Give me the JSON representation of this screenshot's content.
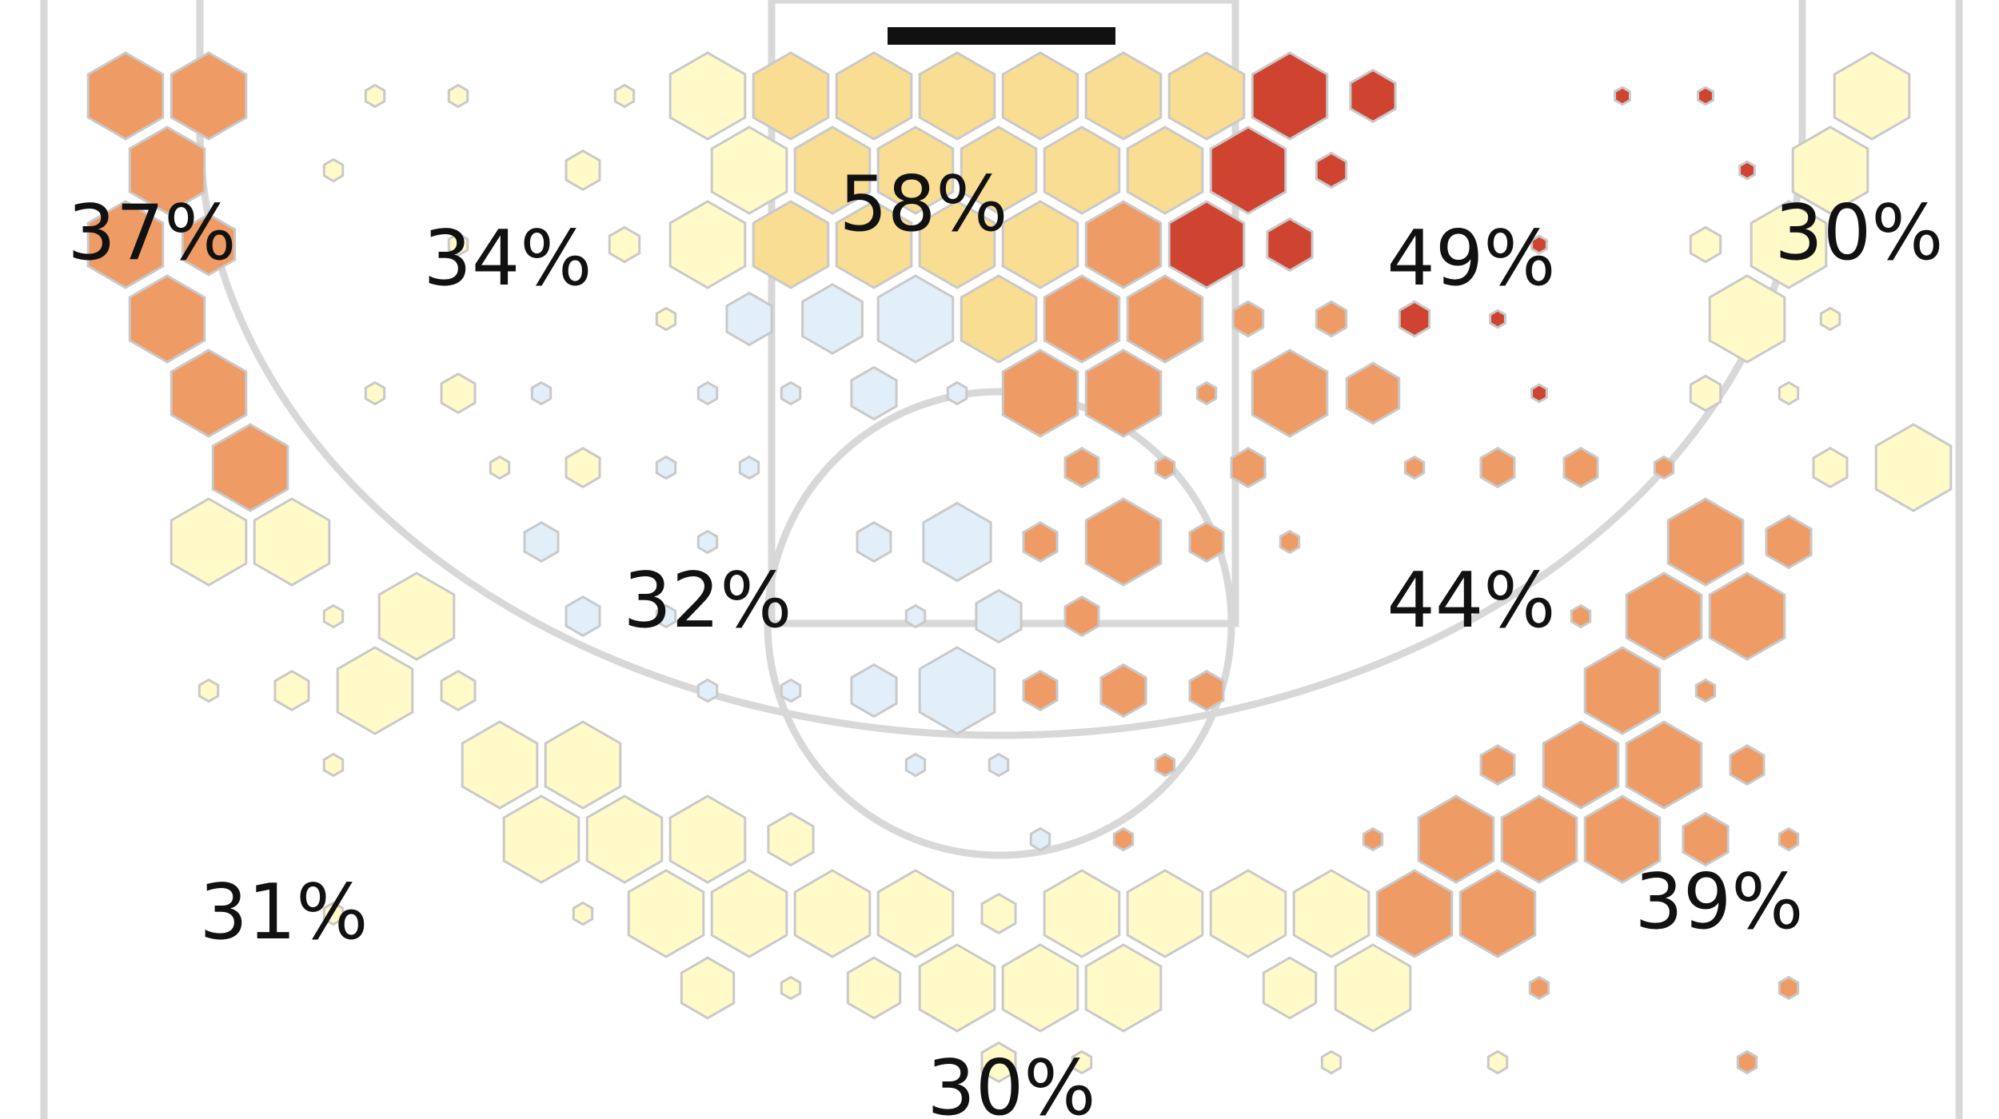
{
  "chart_data": {
    "type": "hexbin-shot-chart",
    "title": "",
    "zones": [
      {
        "id": "left-corner",
        "label": "37%",
        "value": 37
      },
      {
        "id": "left-wing-mid",
        "label": "34%",
        "value": 34
      },
      {
        "id": "paint",
        "label": "58%",
        "value": 58
      },
      {
        "id": "right-baseline-mid",
        "label": "49%",
        "value": 49
      },
      {
        "id": "right-corner",
        "label": "30%",
        "value": 30
      },
      {
        "id": "left-elbow",
        "label": "32%",
        "value": 32
      },
      {
        "id": "right-elbow",
        "label": "44%",
        "value": 44
      },
      {
        "id": "left-wing-three",
        "label": "31%",
        "value": 31
      },
      {
        "id": "top-of-key-three",
        "label": "30%",
        "value": 30
      },
      {
        "id": "right-wing-three",
        "label": "39%",
        "value": 39
      }
    ],
    "color_scale": {
      "levels": [
        "cold",
        "below-average",
        "average",
        "above-average",
        "hot"
      ],
      "colors": [
        "#e2eff8",
        "#fffac8",
        "#f9dd92",
        "#ee9b65",
        "#cf4431"
      ]
    },
    "hexes": [
      {
        "c": 0,
        "r": 0,
        "lvl": 3,
        "s": 1.0
      },
      {
        "c": 1,
        "r": 0,
        "lvl": 3,
        "s": 1.0
      },
      {
        "c": 3,
        "r": 0,
        "lvl": 1,
        "s": 0.25
      },
      {
        "c": 4,
        "r": 0,
        "lvl": 1,
        "s": 0.25
      },
      {
        "c": 6,
        "r": 0,
        "lvl": 1,
        "s": 0.25
      },
      {
        "c": 7,
        "r": 0,
        "lvl": 1,
        "s": 1.0
      },
      {
        "c": 8,
        "r": 0,
        "lvl": 2,
        "s": 1.0
      },
      {
        "c": 9,
        "r": 0,
        "lvl": 2,
        "s": 1.0
      },
      {
        "c": 10,
        "r": 0,
        "lvl": 2,
        "s": 1.0
      },
      {
        "c": 11,
        "r": 0,
        "lvl": 2,
        "s": 1.0
      },
      {
        "c": 12,
        "r": 0,
        "lvl": 2,
        "s": 1.0
      },
      {
        "c": 13,
        "r": 0,
        "lvl": 2,
        "s": 1.0
      },
      {
        "c": 14,
        "r": 0,
        "lvl": 4,
        "s": 1.0
      },
      {
        "c": 15,
        "r": 0,
        "lvl": 4,
        "s": 0.6
      },
      {
        "c": 18,
        "r": 0,
        "lvl": 4,
        "s": 0.2
      },
      {
        "c": 19,
        "r": 0,
        "lvl": 4,
        "s": 0.2
      },
      {
        "c": 21,
        "r": 0,
        "lvl": 1,
        "s": 1.0
      },
      {
        "c": 0,
        "r": 1,
        "lvl": 3,
        "s": 1.0
      },
      {
        "c": 2,
        "r": 1,
        "lvl": 1,
        "s": 0.25
      },
      {
        "c": 5,
        "r": 1,
        "lvl": 1,
        "s": 0.45
      },
      {
        "c": 7,
        "r": 1,
        "lvl": 1,
        "s": 1.0
      },
      {
        "c": 8,
        "r": 1,
        "lvl": 2,
        "s": 1.0
      },
      {
        "c": 9,
        "r": 1,
        "lvl": 2,
        "s": 1.0
      },
      {
        "c": 10,
        "r": 1,
        "lvl": 2,
        "s": 1.0
      },
      {
        "c": 11,
        "r": 1,
        "lvl": 2,
        "s": 1.0
      },
      {
        "c": 12,
        "r": 1,
        "lvl": 2,
        "s": 1.0
      },
      {
        "c": 13,
        "r": 1,
        "lvl": 4,
        "s": 1.0
      },
      {
        "c": 14,
        "r": 1,
        "lvl": 4,
        "s": 0.4
      },
      {
        "c": 19,
        "r": 1,
        "lvl": 4,
        "s": 0.2
      },
      {
        "c": 20,
        "r": 1,
        "lvl": 1,
        "s": 1.0
      },
      {
        "c": 0,
        "r": 2,
        "lvl": 3,
        "s": 1.0
      },
      {
        "c": 1,
        "r": 2,
        "lvl": 3,
        "s": 0.7
      },
      {
        "c": 4,
        "r": 2,
        "lvl": 1,
        "s": 0.25
      },
      {
        "c": 6,
        "r": 2,
        "lvl": 1,
        "s": 0.4
      },
      {
        "c": 7,
        "r": 2,
        "lvl": 1,
        "s": 1.0
      },
      {
        "c": 8,
        "r": 2,
        "lvl": 2,
        "s": 1.0
      },
      {
        "c": 9,
        "r": 2,
        "lvl": 2,
        "s": 1.0
      },
      {
        "c": 10,
        "r": 2,
        "lvl": 2,
        "s": 1.0
      },
      {
        "c": 11,
        "r": 2,
        "lvl": 2,
        "s": 1.0
      },
      {
        "c": 12,
        "r": 2,
        "lvl": 3,
        "s": 1.0
      },
      {
        "c": 13,
        "r": 2,
        "lvl": 4,
        "s": 1.0
      },
      {
        "c": 14,
        "r": 2,
        "lvl": 4,
        "s": 0.6
      },
      {
        "c": 17,
        "r": 2,
        "lvl": 4,
        "s": 0.2
      },
      {
        "c": 19,
        "r": 2,
        "lvl": 1,
        "s": 0.4
      },
      {
        "c": 20,
        "r": 2,
        "lvl": 1,
        "s": 1.0
      },
      {
        "c": 0,
        "r": 3,
        "lvl": 3,
        "s": 1.0
      },
      {
        "c": 6,
        "r": 3,
        "lvl": 1,
        "s": 0.25
      },
      {
        "c": 7,
        "r": 3,
        "lvl": 0,
        "s": 0.6
      },
      {
        "c": 8,
        "r": 3,
        "lvl": 0,
        "s": 0.8
      },
      {
        "c": 9,
        "r": 3,
        "lvl": 0,
        "s": 1.0
      },
      {
        "c": 10,
        "r": 3,
        "lvl": 2,
        "s": 1.0
      },
      {
        "c": 11,
        "r": 3,
        "lvl": 3,
        "s": 1.0
      },
      {
        "c": 12,
        "r": 3,
        "lvl": 3,
        "s": 1.0
      },
      {
        "c": 13,
        "r": 3,
        "lvl": 3,
        "s": 0.4
      },
      {
        "c": 14,
        "r": 3,
        "lvl": 3,
        "s": 0.4
      },
      {
        "c": 15,
        "r": 3,
        "lvl": 4,
        "s": 0.4
      },
      {
        "c": 16,
        "r": 3,
        "lvl": 4,
        "s": 0.2
      },
      {
        "c": 19,
        "r": 3,
        "lvl": 1,
        "s": 1.0
      },
      {
        "c": 20,
        "r": 3,
        "lvl": 1,
        "s": 0.25
      },
      {
        "c": 1,
        "r": 4,
        "lvl": 3,
        "s": 1.0
      },
      {
        "c": 3,
        "r": 4,
        "lvl": 1,
        "s": 0.25
      },
      {
        "c": 4,
        "r": 4,
        "lvl": 1,
        "s": 0.45
      },
      {
        "c": 5,
        "r": 4,
        "lvl": 0,
        "s": 0.25
      },
      {
        "c": 7,
        "r": 4,
        "lvl": 0,
        "s": 0.25
      },
      {
        "c": 8,
        "r": 4,
        "lvl": 0,
        "s": 0.25
      },
      {
        "c": 9,
        "r": 4,
        "lvl": 0,
        "s": 0.6
      },
      {
        "c": 10,
        "r": 4,
        "lvl": 0,
        "s": 0.25
      },
      {
        "c": 11,
        "r": 4,
        "lvl": 3,
        "s": 1.0
      },
      {
        "c": 12,
        "r": 4,
        "lvl": 3,
        "s": 1.0
      },
      {
        "c": 13,
        "r": 4,
        "lvl": 3,
        "s": 0.25
      },
      {
        "c": 14,
        "r": 4,
        "lvl": 3,
        "s": 1.0
      },
      {
        "c": 15,
        "r": 4,
        "lvl": 3,
        "s": 0.7
      },
      {
        "c": 17,
        "r": 4,
        "lvl": 4,
        "s": 0.2
      },
      {
        "c": 19,
        "r": 4,
        "lvl": 1,
        "s": 0.4
      },
      {
        "c": 20,
        "r": 4,
        "lvl": 1,
        "s": 0.25
      },
      {
        "c": 1,
        "r": 5,
        "lvl": 3,
        "s": 1.0
      },
      {
        "c": 4,
        "r": 5,
        "lvl": 1,
        "s": 0.25
      },
      {
        "c": 5,
        "r": 5,
        "lvl": 1,
        "s": 0.45
      },
      {
        "c": 6,
        "r": 5,
        "lvl": 0,
        "s": 0.25
      },
      {
        "c": 7,
        "r": 5,
        "lvl": 0,
        "s": 0.25
      },
      {
        "c": 11,
        "r": 5,
        "lvl": 3,
        "s": 0.45
      },
      {
        "c": 12,
        "r": 5,
        "lvl": 3,
        "s": 0.25
      },
      {
        "c": 13,
        "r": 5,
        "lvl": 3,
        "s": 0.45
      },
      {
        "c": 15,
        "r": 5,
        "lvl": 3,
        "s": 0.25
      },
      {
        "c": 16,
        "r": 5,
        "lvl": 3,
        "s": 0.45
      },
      {
        "c": 17,
        "r": 5,
        "lvl": 3,
        "s": 0.45
      },
      {
        "c": 18,
        "r": 5,
        "lvl": 3,
        "s": 0.25
      },
      {
        "c": 20,
        "r": 5,
        "lvl": 1,
        "s": 0.45
      },
      {
        "c": 21,
        "r": 5,
        "lvl": 1,
        "s": 1.0
      },
      {
        "c": 1,
        "r": 6,
        "lvl": 1,
        "s": 1.0
      },
      {
        "c": 2,
        "r": 6,
        "lvl": 1,
        "s": 1.0
      },
      {
        "c": 5,
        "r": 6,
        "lvl": 0,
        "s": 0.45
      },
      {
        "c": 7,
        "r": 6,
        "lvl": 0,
        "s": 0.25
      },
      {
        "c": 9,
        "r": 6,
        "lvl": 0,
        "s": 0.45
      },
      {
        "c": 10,
        "r": 6,
        "lvl": 0,
        "s": 0.9
      },
      {
        "c": 11,
        "r": 6,
        "lvl": 3,
        "s": 0.45
      },
      {
        "c": 12,
        "r": 6,
        "lvl": 3,
        "s": 1.0
      },
      {
        "c": 13,
        "r": 6,
        "lvl": 3,
        "s": 0.45
      },
      {
        "c": 14,
        "r": 6,
        "lvl": 3,
        "s": 0.25
      },
      {
        "c": 19,
        "r": 6,
        "lvl": 3,
        "s": 1.0
      },
      {
        "c": 20,
        "r": 6,
        "lvl": 3,
        "s": 0.6
      },
      {
        "c": 2,
        "r": 7,
        "lvl": 1,
        "s": 0.25
      },
      {
        "c": 3,
        "r": 7,
        "lvl": 1,
        "s": 1.0
      },
      {
        "c": 5,
        "r": 7,
        "lvl": 0,
        "s": 0.45
      },
      {
        "c": 6,
        "r": 7,
        "lvl": 0,
        "s": 0.25
      },
      {
        "c": 9,
        "r": 7,
        "lvl": 0,
        "s": 0.25
      },
      {
        "c": 10,
        "r": 7,
        "lvl": 0,
        "s": 0.6
      },
      {
        "c": 11,
        "r": 7,
        "lvl": 3,
        "s": 0.45
      },
      {
        "c": 17,
        "r": 7,
        "lvl": 3,
        "s": 0.25
      },
      {
        "c": 18,
        "r": 7,
        "lvl": 3,
        "s": 1.0
      },
      {
        "c": 19,
        "r": 7,
        "lvl": 3,
        "s": 1.0
      },
      {
        "c": 1,
        "r": 8,
        "lvl": 1,
        "s": 0.25
      },
      {
        "c": 2,
        "r": 8,
        "lvl": 1,
        "s": 0.45
      },
      {
        "c": 3,
        "r": 8,
        "lvl": 1,
        "s": 1.0
      },
      {
        "c": 4,
        "r": 8,
        "lvl": 1,
        "s": 0.45
      },
      {
        "c": 7,
        "r": 8,
        "lvl": 0,
        "s": 0.25
      },
      {
        "c": 8,
        "r": 8,
        "lvl": 0,
        "s": 0.25
      },
      {
        "c": 9,
        "r": 8,
        "lvl": 0,
        "s": 0.6
      },
      {
        "c": 10,
        "r": 8,
        "lvl": 0,
        "s": 1.0
      },
      {
        "c": 11,
        "r": 8,
        "lvl": 3,
        "s": 0.45
      },
      {
        "c": 12,
        "r": 8,
        "lvl": 3,
        "s": 0.6
      },
      {
        "c": 13,
        "r": 8,
        "lvl": 3,
        "s": 0.45
      },
      {
        "c": 18,
        "r": 8,
        "lvl": 3,
        "s": 1.0
      },
      {
        "c": 19,
        "r": 8,
        "lvl": 3,
        "s": 0.25
      },
      {
        "c": 2,
        "r": 9,
        "lvl": 1,
        "s": 0.25
      },
      {
        "c": 4,
        "r": 9,
        "lvl": 1,
        "s": 1.0
      },
      {
        "c": 5,
        "r": 9,
        "lvl": 1,
        "s": 1.0
      },
      {
        "c": 9,
        "r": 9,
        "lvl": 0,
        "s": 0.25
      },
      {
        "c": 10,
        "r": 9,
        "lvl": 0,
        "s": 0.25
      },
      {
        "c": 12,
        "r": 9,
        "lvl": 3,
        "s": 0.25
      },
      {
        "c": 16,
        "r": 9,
        "lvl": 3,
        "s": 0.45
      },
      {
        "c": 17,
        "r": 9,
        "lvl": 3,
        "s": 1.0
      },
      {
        "c": 18,
        "r": 9,
        "lvl": 3,
        "s": 1.0
      },
      {
        "c": 19,
        "r": 9,
        "lvl": 3,
        "s": 0.45
      },
      {
        "c": 5,
        "r": 10,
        "lvl": 1,
        "s": 1.0
      },
      {
        "c": 6,
        "r": 10,
        "lvl": 1,
        "s": 1.0
      },
      {
        "c": 7,
        "r": 10,
        "lvl": 1,
        "s": 1.0
      },
      {
        "c": 8,
        "r": 10,
        "lvl": 1,
        "s": 0.6
      },
      {
        "c": 11,
        "r": 10,
        "lvl": 0,
        "s": 0.25
      },
      {
        "c": 12,
        "r": 10,
        "lvl": 3,
        "s": 0.25
      },
      {
        "c": 15,
        "r": 10,
        "lvl": 3,
        "s": 0.25
      },
      {
        "c": 16,
        "r": 10,
        "lvl": 3,
        "s": 1.0
      },
      {
        "c": 17,
        "r": 10,
        "lvl": 3,
        "s": 1.0
      },
      {
        "c": 18,
        "r": 10,
        "lvl": 3,
        "s": 1.0
      },
      {
        "c": 19,
        "r": 10,
        "lvl": 3,
        "s": 0.6
      },
      {
        "c": 20,
        "r": 10,
        "lvl": 3,
        "s": 0.25
      },
      {
        "c": 2,
        "r": 11,
        "lvl": 1,
        "s": 0.25
      },
      {
        "c": 5,
        "r": 11,
        "lvl": 1,
        "s": 0.25
      },
      {
        "c": 6,
        "r": 11,
        "lvl": 1,
        "s": 1.0
      },
      {
        "c": 7,
        "r": 11,
        "lvl": 1,
        "s": 1.0
      },
      {
        "c": 8,
        "r": 11,
        "lvl": 1,
        "s": 1.0
      },
      {
        "c": 9,
        "r": 11,
        "lvl": 1,
        "s": 1.0
      },
      {
        "c": 10,
        "r": 11,
        "lvl": 1,
        "s": 0.45
      },
      {
        "c": 11,
        "r": 11,
        "lvl": 1,
        "s": 1.0
      },
      {
        "c": 12,
        "r": 11,
        "lvl": 1,
        "s": 1.0
      },
      {
        "c": 13,
        "r": 11,
        "lvl": 1,
        "s": 1.0
      },
      {
        "c": 14,
        "r": 11,
        "lvl": 1,
        "s": 1.0
      },
      {
        "c": 15,
        "r": 11,
        "lvl": 3,
        "s": 1.0
      },
      {
        "c": 16,
        "r": 11,
        "lvl": 3,
        "s": 1.0
      },
      {
        "c": 7,
        "r": 12,
        "lvl": 1,
        "s": 0.7
      },
      {
        "c": 8,
        "r": 12,
        "lvl": 1,
        "s": 0.25
      },
      {
        "c": 9,
        "r": 12,
        "lvl": 1,
        "s": 0.7
      },
      {
        "c": 10,
        "r": 12,
        "lvl": 1,
        "s": 1.0
      },
      {
        "c": 11,
        "r": 12,
        "lvl": 1,
        "s": 1.0
      },
      {
        "c": 12,
        "r": 12,
        "lvl": 1,
        "s": 1.0
      },
      {
        "c": 14,
        "r": 12,
        "lvl": 1,
        "s": 0.7
      },
      {
        "c": 15,
        "r": 12,
        "lvl": 1,
        "s": 1.0
      },
      {
        "c": 17,
        "r": 12,
        "lvl": 3,
        "s": 0.25
      },
      {
        "c": 20,
        "r": 12,
        "lvl": 3,
        "s": 0.25
      },
      {
        "c": 10,
        "r": 13,
        "lvl": 1,
        "s": 0.45
      },
      {
        "c": 11,
        "r": 13,
        "lvl": 1,
        "s": 0.25
      },
      {
        "c": 14,
        "r": 13,
        "lvl": 1,
        "s": 0.25
      },
      {
        "c": 16,
        "r": 13,
        "lvl": 1,
        "s": 0.25
      },
      {
        "c": 19,
        "r": 13,
        "lvl": 3,
        "s": 0.25
      }
    ]
  }
}
